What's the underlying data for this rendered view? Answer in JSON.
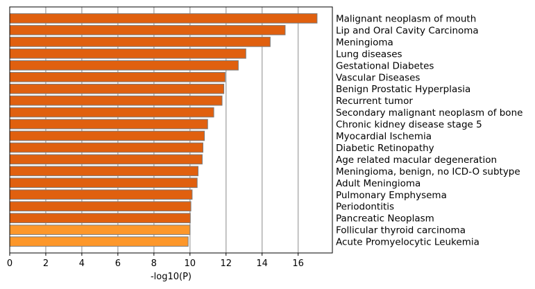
{
  "chart_data": {
    "type": "bar",
    "orientation": "horizontal",
    "xlabel": "-log10(P)",
    "xlim": [
      0,
      17.9
    ],
    "xticks": [
      0,
      2,
      4,
      6,
      8,
      10,
      12,
      14,
      16
    ],
    "grid": "vertical-major",
    "category_label_position": "right",
    "colors": {
      "primary": "#e0600f",
      "secondary": "#fd972a",
      "edge": "#7a7a7a",
      "grid": "#b0b0b0"
    },
    "categories": [
      "Malignant neoplasm of mouth",
      "Lip and Oral Cavity Carcinoma",
      "Meningioma",
      "Lung diseases",
      "Gestational Diabetes",
      "Vascular Diseases",
      "Benign Prostatic Hyperplasia",
      "Recurrent tumor",
      "Secondary malignant neoplasm of bone",
      "Chronic kidney disease stage 5",
      "Myocardial Ischemia",
      "Diabetic Retinopathy",
      "Age related macular degeneration",
      "Meningioma, benign, no ICD-O subtype",
      "Adult Meningioma",
      "Pulmonary Emphysema",
      "Periodontitis",
      "Pancreatic Neoplasm",
      "Follicular thyroid carcinoma",
      "Acute Promyelocytic Leukemia"
    ],
    "values": [
      17.05,
      15.28,
      14.45,
      13.1,
      12.68,
      11.95,
      11.88,
      11.78,
      11.32,
      10.98,
      10.8,
      10.72,
      10.68,
      10.45,
      10.4,
      10.12,
      10.05,
      10.02,
      10.0,
      9.9
    ],
    "color_group": [
      "primary",
      "primary",
      "primary",
      "primary",
      "primary",
      "primary",
      "primary",
      "primary",
      "primary",
      "primary",
      "primary",
      "primary",
      "primary",
      "primary",
      "primary",
      "primary",
      "primary",
      "primary",
      "secondary",
      "secondary"
    ]
  }
}
